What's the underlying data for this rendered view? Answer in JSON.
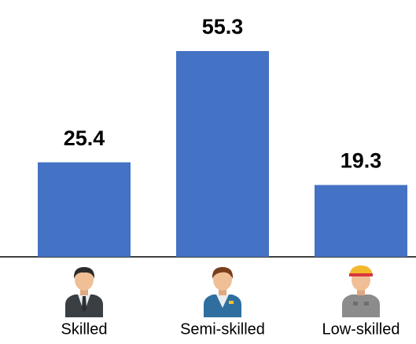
{
  "chart_data": {
    "type": "bar",
    "categories": [
      "Skilled",
      "Semi-skilled",
      "Low-skilled"
    ],
    "values": [
      25.4,
      55.3,
      19.3
    ],
    "color": "#4472c4"
  }
}
